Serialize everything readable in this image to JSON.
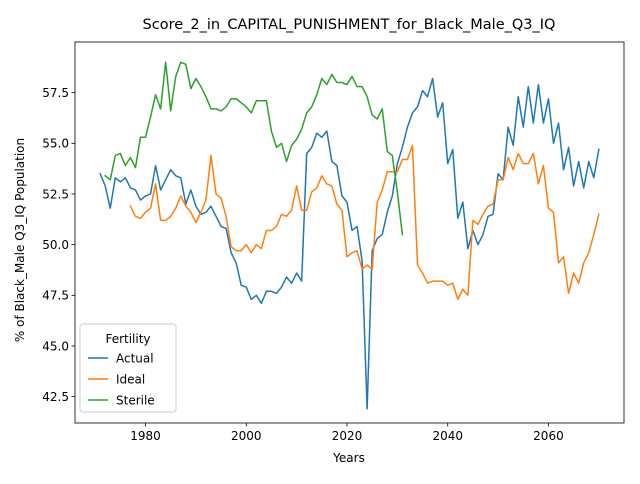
{
  "chart_data": {
    "type": "line",
    "title": "Score_2_in_CAPITAL_PUNISHMENT_for_Black_Male_Q3_IQ",
    "xlabel": "Years",
    "ylabel": "% of Black_Male Q3_IQ Population",
    "xlim": [
      1966,
      2075
    ],
    "ylim": [
      41.2,
      60.0
    ],
    "xticks": [
      1980,
      2000,
      2020,
      2040,
      2060
    ],
    "yticks": [
      42.5,
      45.0,
      47.5,
      50.0,
      52.5,
      55.0,
      57.5
    ],
    "grid": false,
    "legend": {
      "title": "Fertility",
      "placement": "lower left"
    },
    "colors": {
      "Actual": "#1f77b4",
      "Ideal": "#ff7f0e",
      "Sterile": "#2ca02c"
    },
    "series": [
      {
        "name": "Actual",
        "x": [
          1971,
          1972,
          1973,
          1974,
          1975,
          1976,
          1977,
          1978,
          1979,
          1980,
          1981,
          1982,
          1983,
          1984,
          1985,
          1986,
          1987,
          1988,
          1989,
          1990,
          1991,
          1992,
          1993,
          1994,
          1995,
          1996,
          1997,
          1998,
          1999,
          2000,
          2001,
          2002,
          2003,
          2004,
          2005,
          2006,
          2007,
          2008,
          2009,
          2010,
          2011,
          2012,
          2013,
          2014,
          2015,
          2016,
          2017,
          2018,
          2019,
          2020,
          2021,
          2022,
          2023,
          2024,
          2025,
          2026,
          2027,
          2028,
          2029,
          2030,
          2031,
          2032,
          2033,
          2034,
          2035,
          2036,
          2037,
          2038,
          2039,
          2040,
          2041,
          2042,
          2043,
          2044,
          2045,
          2046,
          2047,
          2048,
          2049,
          2050,
          2051,
          2052,
          2053,
          2054,
          2055,
          2056,
          2057,
          2058,
          2059,
          2060,
          2061,
          2062,
          2063,
          2064,
          2065,
          2066,
          2067,
          2068,
          2069,
          2070
        ],
        "values": [
          53.5,
          52.9,
          51.8,
          53.3,
          53.1,
          53.3,
          52.8,
          52.7,
          52.2,
          52.4,
          52.5,
          53.9,
          52.7,
          53.2,
          53.7,
          53.4,
          53.3,
          52.0,
          52.7,
          51.9,
          51.5,
          51.6,
          51.9,
          51.4,
          50.9,
          50.8,
          49.6,
          49.1,
          48.0,
          47.9,
          47.3,
          47.5,
          47.1,
          47.7,
          47.7,
          47.6,
          47.9,
          48.4,
          48.1,
          48.6,
          48.2,
          54.5,
          54.8,
          55.5,
          55.3,
          55.6,
          54.1,
          53.9,
          52.4,
          52.1,
          50.7,
          50.9,
          49.2,
          41.9,
          49.7,
          50.3,
          50.5,
          51.6,
          52.4,
          54.0,
          54.8,
          55.8,
          56.5,
          56.8,
          57.6,
          57.3,
          58.2,
          56.3,
          57.0,
          54.0,
          54.7,
          51.3,
          52.1,
          49.8,
          50.7,
          50.0,
          50.5,
          51.4,
          51.5,
          53.5,
          53.2,
          55.8,
          54.9,
          57.3,
          55.8,
          57.8,
          56.0,
          57.9,
          56.0,
          57.2,
          55.0,
          56.0,
          53.7,
          54.8,
          52.9,
          54.1,
          52.8,
          54.1,
          53.3,
          54.7
        ]
      },
      {
        "name": "Ideal",
        "x": [
          1977,
          1978,
          1979,
          1980,
          1981,
          1982,
          1983,
          1984,
          1985,
          1986,
          1987,
          1988,
          1989,
          1990,
          1991,
          1992,
          1993,
          1994,
          1995,
          1996,
          1997,
          1998,
          1999,
          2000,
          2001,
          2002,
          2003,
          2004,
          2005,
          2006,
          2007,
          2008,
          2009,
          2010,
          2011,
          2012,
          2013,
          2014,
          2015,
          2016,
          2017,
          2018,
          2019,
          2020,
          2021,
          2022,
          2023,
          2024,
          2025,
          2026,
          2027,
          2028,
          2029,
          2030,
          2031,
          2032,
          2033,
          2034,
          2035,
          2036,
          2037,
          2038,
          2039,
          2040,
          2041,
          2042,
          2043,
          2044,
          2045,
          2046,
          2047,
          2048,
          2049,
          2050,
          2051,
          2052,
          2053,
          2054,
          2055,
          2056,
          2057,
          2058,
          2059,
          2060,
          2061,
          2062,
          2063,
          2064,
          2065,
          2066,
          2067,
          2068,
          2069,
          2070
        ],
        "values": [
          51.9,
          51.4,
          51.3,
          51.6,
          51.8,
          53.0,
          51.2,
          51.2,
          51.4,
          51.8,
          52.4,
          51.9,
          51.6,
          51.1,
          51.6,
          52.2,
          54.4,
          52.5,
          52.3,
          51.4,
          49.9,
          49.7,
          49.7,
          50.0,
          49.6,
          50.0,
          49.8,
          50.7,
          50.7,
          50.9,
          51.5,
          51.4,
          51.7,
          52.9,
          51.7,
          51.7,
          52.6,
          52.8,
          53.4,
          53.0,
          52.9,
          52.0,
          51.7,
          49.4,
          49.6,
          49.7,
          48.8,
          49.0,
          48.8,
          52.1,
          52.7,
          53.6,
          53.6,
          53.6,
          54.2,
          54.2,
          54.9,
          49.0,
          48.6,
          48.1,
          48.2,
          48.2,
          48.2,
          48.0,
          48.1,
          47.3,
          47.8,
          47.5,
          51.2,
          51.0,
          51.5,
          51.9,
          52.0,
          53.2,
          53.2,
          54.3,
          53.7,
          54.5,
          54.0,
          54.0,
          54.5,
          53.0,
          53.9,
          51.8,
          51.6,
          49.1,
          49.4,
          47.6,
          48.6,
          48.1,
          49.1,
          49.6,
          50.5,
          51.5
        ]
      },
      {
        "name": "Sterile",
        "x": [
          1972,
          1973,
          1974,
          1975,
          1976,
          1977,
          1978,
          1979,
          1980,
          1981,
          1982,
          1983,
          1984,
          1985,
          1986,
          1987,
          1988,
          1989,
          1990,
          1991,
          1992,
          1993,
          1994,
          1995,
          1996,
          1997,
          1998,
          1999,
          2000,
          2001,
          2002,
          2003,
          2004,
          2005,
          2006,
          2007,
          2008,
          2009,
          2010,
          2011,
          2012,
          2013,
          2014,
          2015,
          2016,
          2017,
          2018,
          2019,
          2020,
          2021,
          2022,
          2023,
          2024,
          2025,
          2026,
          2027,
          2028,
          2029,
          2030,
          2031
        ],
        "values": [
          53.4,
          53.2,
          54.4,
          54.5,
          53.9,
          54.3,
          53.8,
          55.3,
          55.3,
          56.3,
          57.4,
          56.7,
          59.0,
          56.6,
          58.3,
          59.0,
          58.9,
          57.7,
          58.2,
          57.8,
          57.3,
          56.7,
          56.7,
          56.6,
          56.8,
          57.2,
          57.2,
          57.0,
          56.8,
          56.5,
          57.1,
          57.1,
          57.1,
          55.6,
          54.8,
          55.0,
          54.1,
          54.9,
          55.2,
          55.7,
          56.5,
          56.8,
          57.4,
          58.2,
          57.9,
          58.4,
          58.0,
          58.0,
          57.9,
          58.3,
          57.8,
          57.8,
          57.3,
          56.4,
          56.2,
          56.7,
          54.6,
          54.4,
          52.6,
          50.5
        ]
      }
    ]
  }
}
